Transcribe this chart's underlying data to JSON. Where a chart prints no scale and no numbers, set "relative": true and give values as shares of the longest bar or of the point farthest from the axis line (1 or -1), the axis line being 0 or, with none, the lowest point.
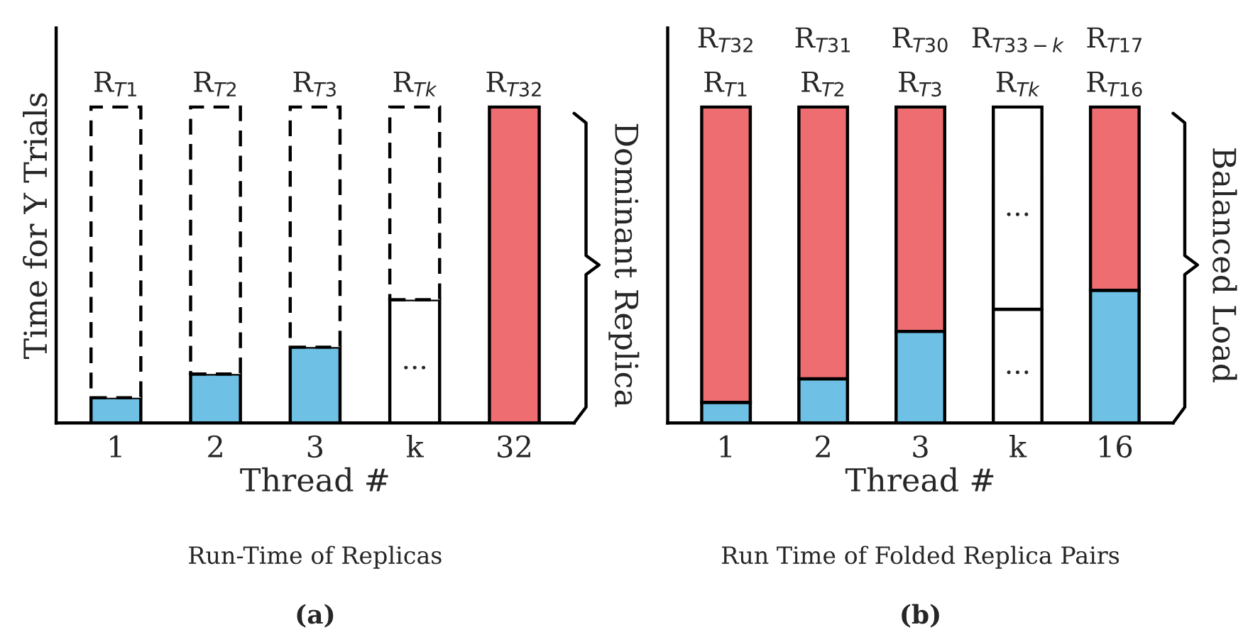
{
  "chart_data": [
    {
      "type": "bar",
      "stacked": true,
      "relative": true,
      "title": "Run-Time of Replicas",
      "subtitle": "(a)",
      "xlabel": "Thread #",
      "ylabel": "Time for Y Trials",
      "y2label": "Dominant Replica",
      "categories": [
        "1",
        "2",
        "3",
        "k",
        "32"
      ],
      "series": [
        {
          "color": "#6ec1e4",
          "values": [
            0.08,
            0.155,
            0.24,
            null,
            null
          ]
        },
        {
          "color": "#ffffff",
          "values": [
            null,
            null,
            null,
            0.39,
            null
          ]
        },
        {
          "color": "#ee6d70",
          "values": [
            null,
            null,
            null,
            null,
            1
          ]
        },
        {
          "color": "#ffffff",
          "line_style": "dashed",
          "values": [
            0.92,
            0.845,
            0.76,
            0.61,
            null
          ]
        }
      ],
      "annotations": [
        "R$_{T1}$",
        "R$_{T2}$",
        "R$_{T3}$",
        "R$_{Tk}$",
        "R$_{T32}$",
        "..."
      ]
    },
    {
      "type": "bar",
      "stacked": true,
      "relative": true,
      "title": "Run Time of Folded Replica Pairs",
      "subtitle": "(b)",
      "xlabel": "Thread #",
      "y2label": "Balanced Load",
      "categories": [
        "1",
        "2",
        "3",
        "k",
        "16"
      ],
      "series": [
        {
          "color": "#6ec1e4",
          "values": [
            0.065,
            0.14,
            0.29,
            null,
            0.42
          ]
        },
        {
          "color": "#ffffff",
          "values": [
            null,
            null,
            null,
            0.36,
            null
          ]
        },
        {
          "color": "#ee6d70",
          "values": [
            0.935,
            0.86,
            0.71,
            null,
            0.58
          ]
        },
        {
          "color": "#ffffff",
          "values": [
            null,
            null,
            null,
            0.64,
            null
          ]
        }
      ],
      "annotations": [
        "R$_{T32}$",
        "R$_{T31}$",
        "R$_{T30}$",
        "R$_{T33−k}$",
        "R$_{T17}$",
        "R$_{T1}$",
        "R$_{T2}$",
        "R$_{T3}$",
        "R$_{Tk}$",
        "R$_{T16}$",
        "...",
        "..."
      ]
    }
  ]
}
